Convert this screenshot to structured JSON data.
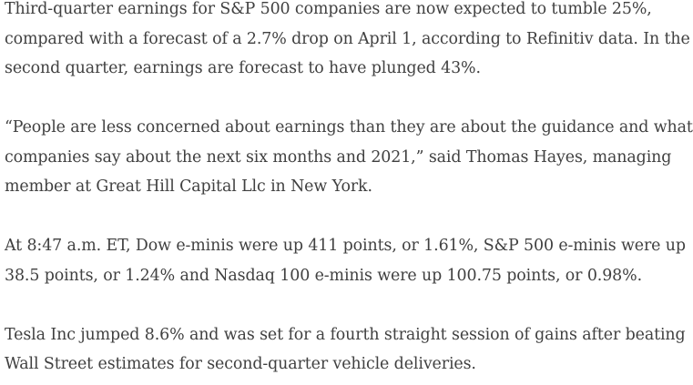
{
  "article": {
    "paragraphs": [
      {
        "lines": [
          "Third-quarter earnings for S&P 500 companies are now expected to tumble 25%,",
          "compared with a forecast of a 2.7% drop on April 1, according to Refinitiv data. In the",
          "second quarter, earnings are forecast to have plunged 43%."
        ]
      },
      {
        "lines": [
          "“People are less concerned about earnings than they are about the guidance and what",
          "companies say about the next six months and 2021,” said Thomas Hayes, managing",
          "member at Great Hill Capital Llc in New York."
        ]
      },
      {
        "lines": [
          "At 8:47 a.m. ET, Dow e-minis were up 411 points, or 1.61%, S&P 500 e-minis were up",
          "38.5 points, or 1.24% and Nasdaq 100 e-minis were up 100.75 points, or 0.98%."
        ]
      },
      {
        "lines": [
          "Tesla Inc jumped 8.6% and was set for a fourth straight session of gains after beating",
          "Wall Street estimates for second-quarter vehicle deliveries."
        ]
      }
    ]
  }
}
